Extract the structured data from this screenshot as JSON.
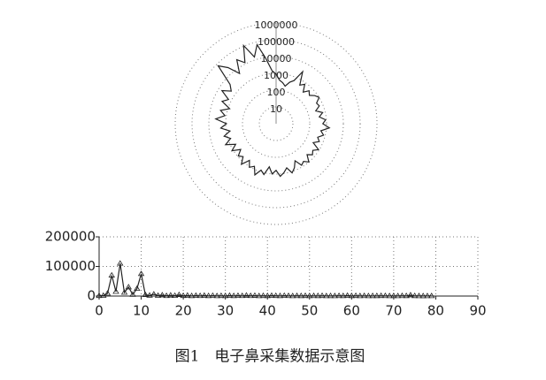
{
  "chart_data": [
    {
      "type": "polar",
      "log": true,
      "grid": true,
      "color": "#222222",
      "ylim": [
        1,
        1000000
      ],
      "yticks": [
        10,
        100,
        1000,
        10000,
        100000,
        1000000
      ],
      "values": [
        900,
        1500,
        9000,
        70000,
        15000,
        110000,
        12000,
        30000,
        5000,
        25000,
        75000,
        4000,
        2000,
        6000,
        1500,
        3000,
        800,
        2500,
        1200,
        4000,
        900,
        2000,
        600,
        1500,
        700,
        1800,
        500,
        1200,
        400,
        900,
        600,
        1500,
        500,
        1100,
        700,
        2000,
        800,
        1300,
        400,
        1000,
        600,
        1400,
        900,
        500,
        1200,
        700,
        300,
        800,
        600,
        1000,
        400,
        700,
        500,
        900,
        300,
        600,
        400,
        800,
        500,
        1500,
        600,
        900,
        400,
        700,
        300,
        600,
        500,
        1000,
        700,
        400,
        600,
        300,
        800,
        500,
        3000,
        600,
        400,
        200,
        300,
        400
      ]
    },
    {
      "type": "line",
      "grid": true,
      "color": "#222222",
      "xlim": [
        0,
        90
      ],
      "xticks": [
        0,
        10,
        20,
        30,
        40,
        50,
        60,
        70,
        80,
        90
      ],
      "ylim": [
        0,
        200000
      ],
      "yticks": [
        0,
        100000,
        200000
      ],
      "x": [
        0,
        1,
        2,
        3,
        4,
        5,
        6,
        7,
        8,
        9,
        10,
        11,
        12,
        13,
        14,
        15,
        16,
        17,
        18,
        19,
        20,
        21,
        22,
        23,
        24,
        25,
        26,
        27,
        28,
        29,
        30,
        31,
        32,
        33,
        34,
        35,
        36,
        37,
        38,
        39,
        40,
        41,
        42,
        43,
        44,
        45,
        46,
        47,
        48,
        49,
        50,
        51,
        52,
        53,
        54,
        55,
        56,
        57,
        58,
        59,
        60,
        61,
        62,
        63,
        64,
        65,
        66,
        67,
        68,
        69,
        70,
        71,
        72,
        73,
        74,
        75,
        76,
        77,
        78,
        79
      ],
      "values": [
        900,
        1500,
        9000,
        70000,
        15000,
        110000,
        12000,
        30000,
        5000,
        25000,
        75000,
        4000,
        2000,
        6000,
        1500,
        3000,
        800,
        2500,
        1200,
        4000,
        900,
        2000,
        600,
        1500,
        700,
        1800,
        500,
        1200,
        400,
        900,
        600,
        1500,
        500,
        1100,
        700,
        2000,
        800,
        1300,
        400,
        1000,
        600,
        1400,
        900,
        500,
        1200,
        700,
        300,
        800,
        600,
        1000,
        400,
        700,
        500,
        900,
        300,
        600,
        400,
        800,
        500,
        1500,
        600,
        900,
        400,
        700,
        300,
        600,
        500,
        1000,
        700,
        400,
        600,
        300,
        800,
        500,
        3000,
        600,
        400,
        200,
        300,
        400
      ]
    }
  ],
  "caption": "图1　电子鼻采集数据示意图"
}
